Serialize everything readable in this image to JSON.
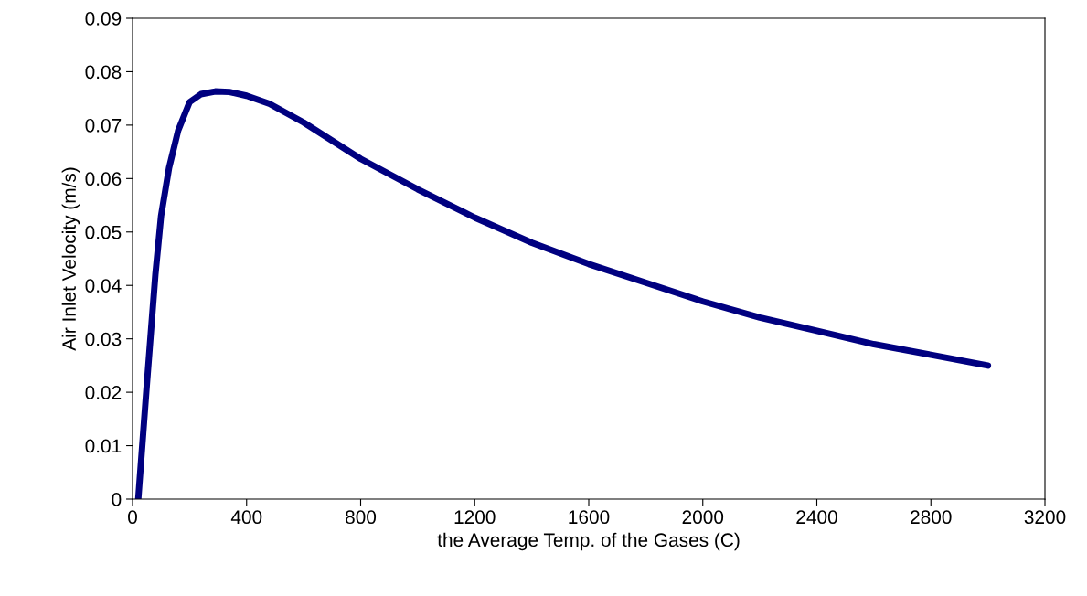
{
  "chart_data": {
    "type": "line",
    "xlabel": "the Average Temp. of the Gases (C)",
    "ylabel": "Air Inlet Velocity (m/s)",
    "xlim": [
      0,
      3200
    ],
    "xticks": [
      0,
      400,
      800,
      1200,
      1600,
      2000,
      2400,
      2800,
      3200
    ],
    "ylim": [
      0,
      0.09
    ],
    "yticks": [
      0,
      0.01,
      0.02,
      0.03,
      0.04,
      0.05,
      0.06,
      0.07,
      0.08,
      0.09
    ],
    "grid": false,
    "legend": false,
    "marker": "none",
    "line_style": "solid",
    "series": [
      {
        "color": "#000080",
        "x": [
          20,
          48,
          80,
          100,
          128,
          160,
          200,
          240,
          290,
          340,
          400,
          480,
          600,
          800,
          1000,
          1200,
          1400,
          1600,
          1800,
          2000,
          2200,
          2400,
          2600,
          2800,
          3000
        ],
        "values": [
          0,
          0.02,
          0.042,
          0.053,
          0.062,
          0.069,
          0.0743,
          0.0758,
          0.0763,
          0.0762,
          0.0755,
          0.074,
          0.0705,
          0.0637,
          0.058,
          0.0527,
          0.048,
          0.044,
          0.0405,
          0.037,
          0.034,
          0.0315,
          0.029,
          0.027,
          0.025
        ]
      }
    ]
  }
}
